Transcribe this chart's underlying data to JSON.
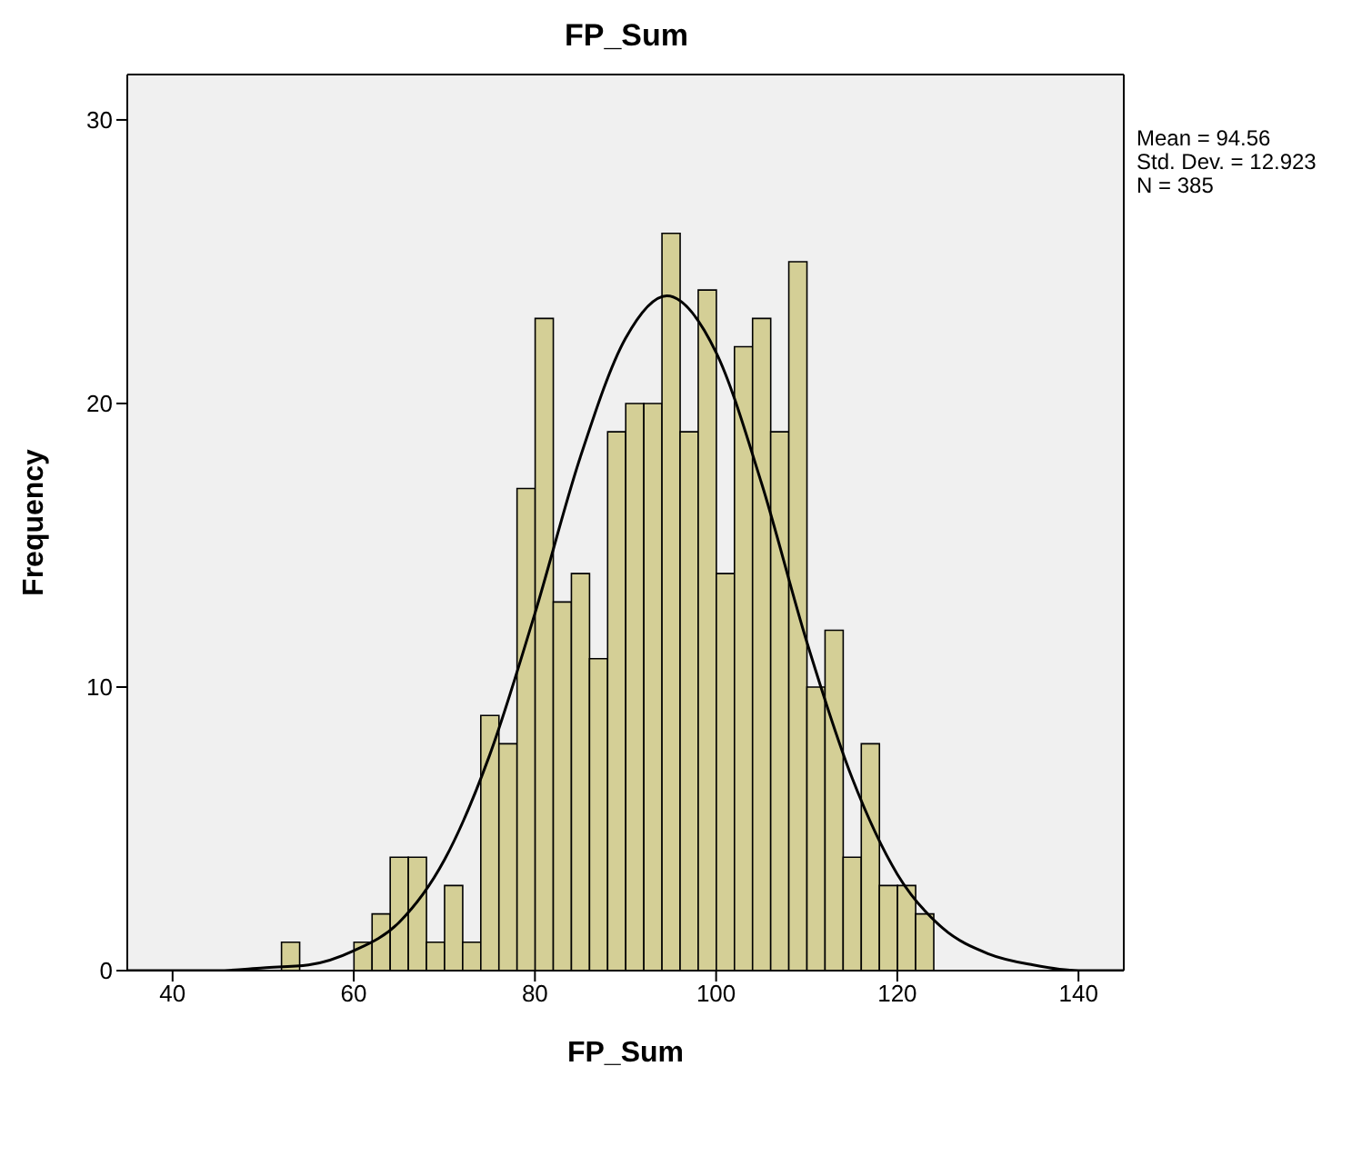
{
  "chart_data": {
    "type": "histogram",
    "title": "FP_Sum",
    "xlabel": "FP_Sum",
    "ylabel": "Frequency",
    "xlim": [
      35,
      145
    ],
    "xticks": [
      40,
      60,
      80,
      100,
      120,
      140
    ],
    "ylim": [
      0,
      31.6
    ],
    "yticks": [
      0,
      10,
      20,
      30
    ],
    "grid": false,
    "legend": false,
    "series": [
      {
        "color": "#d4cf96",
        "bins": [
          52,
          54,
          56,
          58,
          60,
          62,
          64,
          66,
          68,
          70,
          72,
          74,
          76,
          78,
          80,
          82,
          84,
          86,
          88,
          90,
          92,
          94,
          96,
          98,
          100,
          102,
          104,
          106,
          108,
          110,
          112,
          114,
          116,
          118,
          120,
          122,
          124
        ],
        "values": [
          1,
          0,
          0,
          0,
          1,
          2,
          4,
          4,
          1,
          3,
          1,
          9,
          8,
          17,
          23,
          13,
          14,
          11,
          19,
          20,
          20,
          26,
          19,
          24,
          14,
          22,
          23,
          19,
          25,
          10,
          12,
          4,
          8,
          3,
          3,
          2
        ]
      },
      {
        "type": "line",
        "color": "#000000",
        "marker": "none",
        "x": [
          35,
          40,
          45,
          50,
          55,
          60,
          65,
          70,
          75,
          80,
          85,
          90,
          94.56,
          100,
          105,
          110,
          115,
          120,
          125,
          130,
          135,
          140,
          145
        ],
        "values": [
          0,
          0,
          0,
          0.1,
          0.2,
          0.7,
          1.7,
          3.9,
          7.6,
          12.6,
          18.1,
          22.3,
          23.8,
          21.8,
          17.2,
          11.6,
          6.8,
          3.4,
          1.5,
          0.6,
          0.2,
          0,
          0
        ]
      }
    ],
    "annotations": [
      "Mean = 94.56",
      "Std. Dev. = 12.923",
      "N = 385"
    ]
  }
}
